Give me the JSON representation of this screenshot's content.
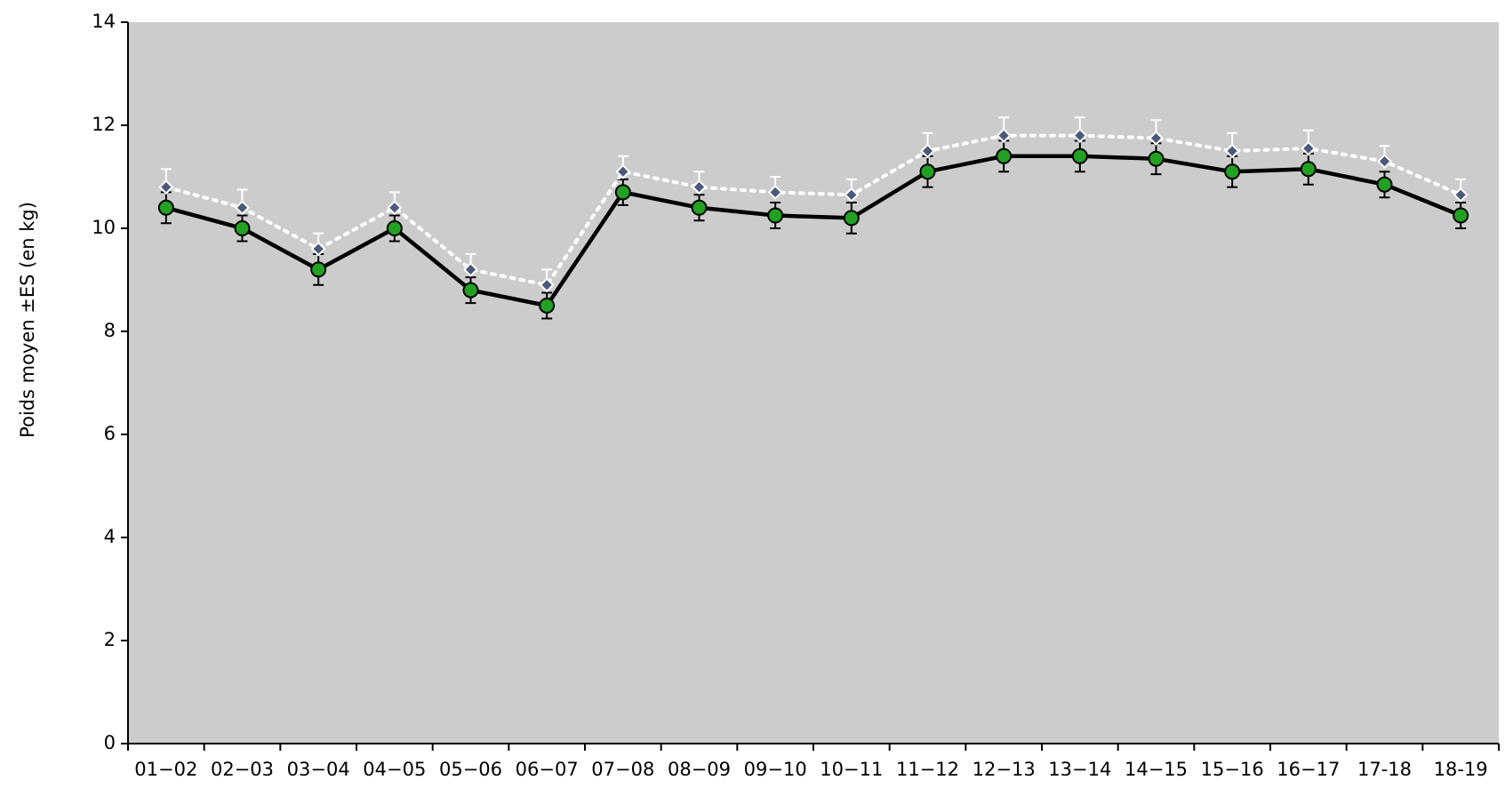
{
  "chart_data": {
    "type": "line",
    "ylabel": "Poids moyen ±ES (en kg)",
    "categories": [
      "01−02",
      "02−03",
      "03−04",
      "04−05",
      "05−06",
      "06−07",
      "07−08",
      "08−09",
      "09−10",
      "10−11",
      "11−12",
      "12−13",
      "13−14",
      "14−15",
      "15−16",
      "16−17",
      "17-18",
      "18-19"
    ],
    "series": [
      {
        "color": "#22a022",
        "line_color": "#000000",
        "line_style": "solid",
        "marker": "circle",
        "values": [
          10.4,
          10.0,
          9.2,
          10.0,
          8.8,
          8.5,
          10.7,
          10.4,
          10.25,
          10.2,
          11.1,
          11.4,
          11.4,
          11.35,
          11.1,
          11.15,
          10.85,
          10.25
        ],
        "errors": [
          0.3,
          0.25,
          0.3,
          0.25,
          0.25,
          0.25,
          0.25,
          0.25,
          0.25,
          0.3,
          0.3,
          0.3,
          0.3,
          0.3,
          0.3,
          0.3,
          0.25,
          0.25
        ]
      },
      {
        "color": "#4a5a7a",
        "line_color": "#ffffff",
        "line_style": "dotted",
        "marker": "diamond",
        "values": [
          10.8,
          10.4,
          9.6,
          10.4,
          9.2,
          8.9,
          11.1,
          10.8,
          10.7,
          10.65,
          11.5,
          11.8,
          11.8,
          11.75,
          11.5,
          11.55,
          11.3,
          10.65
        ],
        "errors": [
          0.35,
          0.35,
          0.3,
          0.3,
          0.3,
          0.3,
          0.3,
          0.3,
          0.3,
          0.3,
          0.35,
          0.35,
          0.35,
          0.35,
          0.35,
          0.35,
          0.3,
          0.3
        ]
      }
    ],
    "ylim": [
      0,
      14
    ],
    "yticks": [
      0,
      2,
      4,
      6,
      8,
      10,
      12,
      14
    ],
    "plot_background": "#cccccc"
  }
}
